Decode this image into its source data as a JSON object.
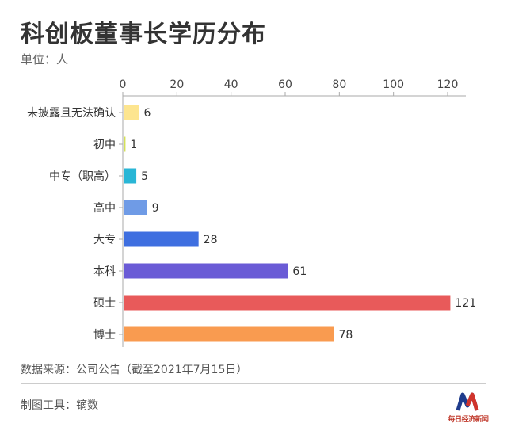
{
  "header": {
    "title": "科创板董事长学历分布",
    "unit": "单位：人"
  },
  "footer": {
    "source": "数据来源：公司公告（截至2021年7月15日）",
    "tool": "制图工具：镝数",
    "logo_text": "每日经济新闻"
  },
  "colors": {
    "axis": "#aaaaaa",
    "label": "#333333",
    "value_label": "#333333"
  },
  "chart_data": {
    "type": "bar",
    "orientation": "horizontal",
    "title": "科创板董事长学历分布",
    "xlabel": "",
    "ylabel": "",
    "xlim": [
      0,
      120
    ],
    "x_ticks": [
      0,
      20,
      40,
      60,
      80,
      100,
      120
    ],
    "x_axis_position": "top",
    "grid": false,
    "categories": [
      "未披露且无法确认",
      "初中",
      "中专（职高）",
      "高中",
      "大专",
      "本科",
      "硕士",
      "博士"
    ],
    "values": [
      6,
      1,
      5,
      9,
      28,
      61,
      121,
      78
    ],
    "bar_colors": [
      "#fde58f",
      "#d4e157",
      "#29b6d6",
      "#6f9be6",
      "#3f6fe0",
      "#6a5bd6",
      "#e85a5a",
      "#f99b50"
    ]
  }
}
